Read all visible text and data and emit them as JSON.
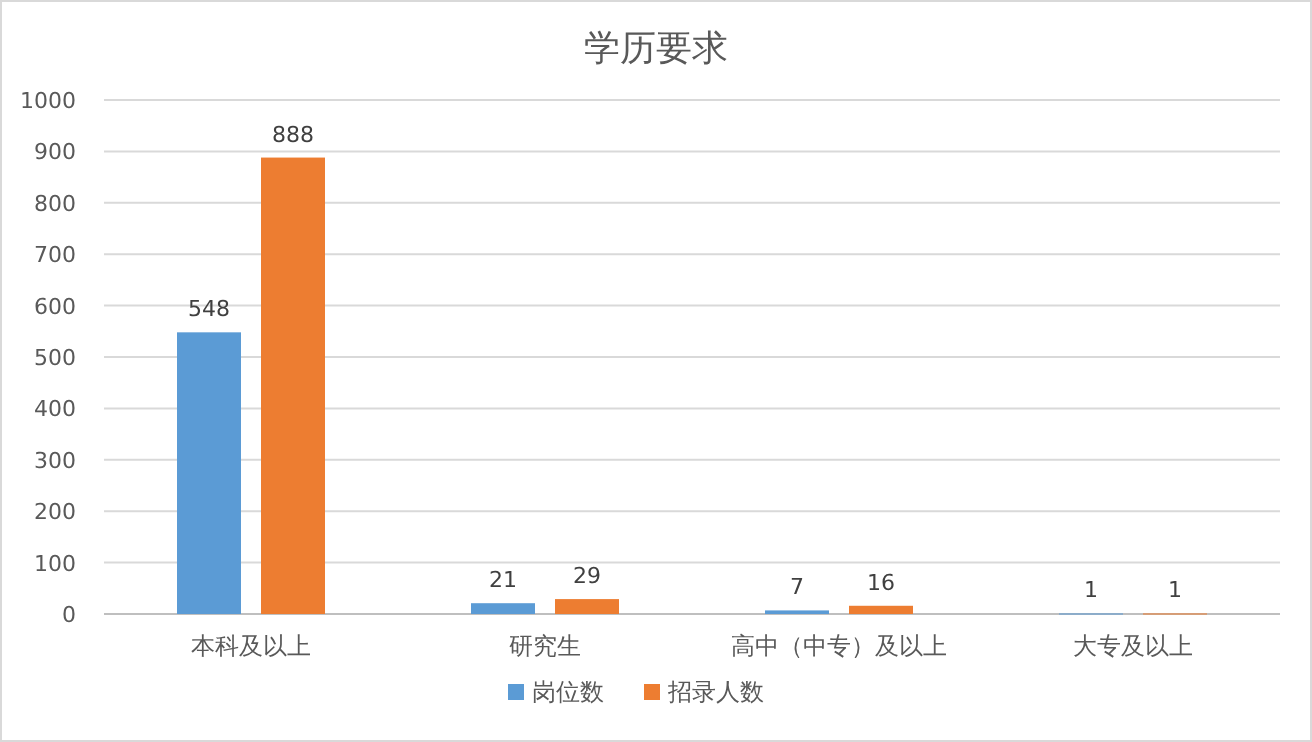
{
  "chart_data": {
    "type": "bar",
    "title": "学历要求",
    "categories": [
      "本科及以上",
      "研究生",
      "高中（中专）及以上",
      "大专及以上"
    ],
    "series": [
      {
        "name": "岗位数",
        "color": "#5b9bd5",
        "values": [
          548,
          21,
          7,
          1
        ]
      },
      {
        "name": "招录人数",
        "color": "#ed7d31",
        "values": [
          888,
          29,
          16,
          1
        ]
      }
    ],
    "ylim": [
      0,
      1000
    ],
    "yticks": [
      0,
      100,
      200,
      300,
      400,
      500,
      600,
      700,
      800,
      900,
      1000
    ],
    "grid": "y",
    "legend": "bottom",
    "data_labels": true
  }
}
